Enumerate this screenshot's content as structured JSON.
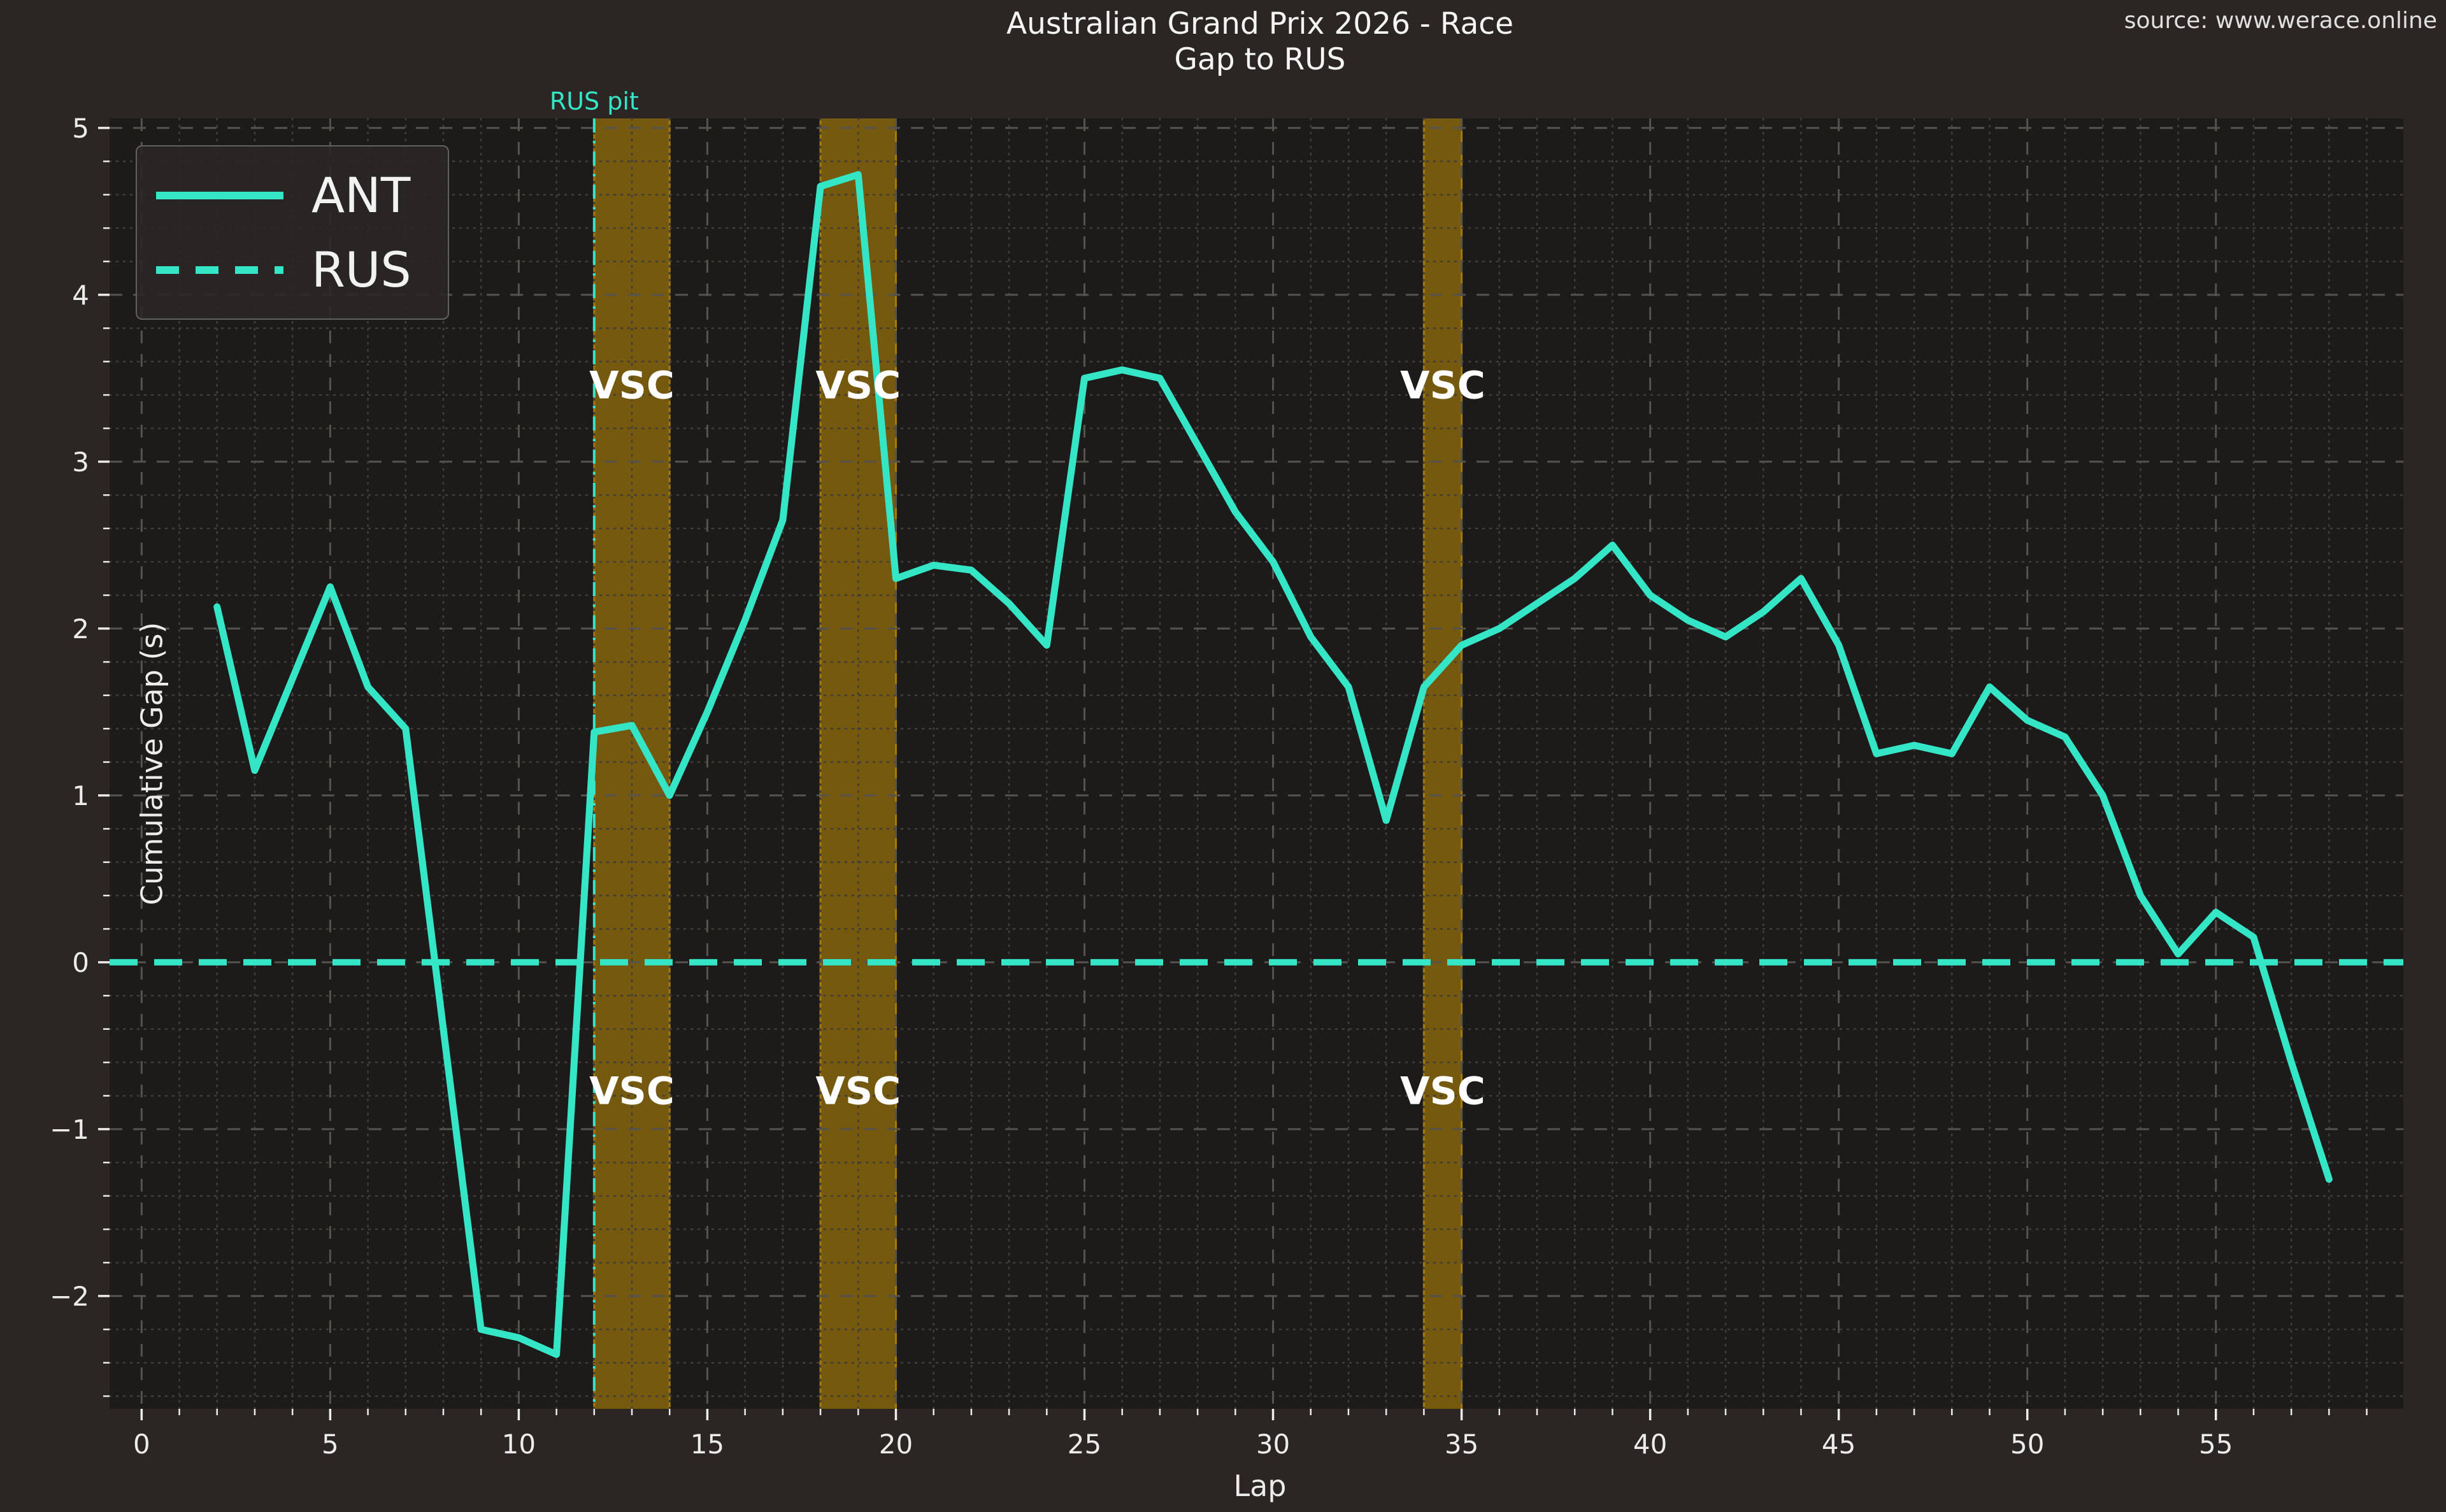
{
  "title": {
    "line1": "Australian Grand Prix 2026 - Race",
    "line2": "Gap to RUS"
  },
  "source": "source: www.werace.online",
  "axes": {
    "xlabel": "Lap",
    "ylabel": "Cumulative Gap (s)"
  },
  "legend": [
    {
      "label": "ANT",
      "style": "solid"
    },
    {
      "label": "RUS",
      "style": "dashed"
    }
  ],
  "annotations": {
    "rus_pit_label": "RUS pit",
    "rus_pit_lap": 12,
    "vsc_label": "VSC",
    "vsc_label_upper_y": 3.46,
    "vsc_label_lower_y": -0.77
  },
  "colors": {
    "figure_bg": "#2b2523",
    "axes_bg": "#1c1b1a",
    "line_teal": "#34e5c6",
    "grid_major": "#56524e",
    "grid_minor": "#403d3a",
    "tick_text": "#ececec",
    "vsc_fill": "#75590f",
    "vsc_edge": "#a57b0d",
    "vsc_text": "#ffffff"
  },
  "chart_data": {
    "type": "line",
    "title": "Australian Grand Prix 2026 - Race",
    "subtitle": "Gap to RUS",
    "xlabel": "Lap",
    "ylabel": "Cumulative Gap (s)",
    "xlim": [
      -0.85,
      59.97
    ],
    "ylim": [
      -2.676,
      5.057
    ],
    "grid": true,
    "legend_position": "upper left",
    "x": [
      2,
      3,
      4,
      5,
      6,
      7,
      8,
      9,
      10,
      11,
      12,
      13,
      14,
      15,
      16,
      17,
      18,
      19,
      20,
      21,
      22,
      23,
      24,
      25,
      26,
      27,
      28,
      29,
      30,
      31,
      32,
      33,
      34,
      35,
      36,
      37,
      38,
      39,
      40,
      41,
      42,
      43,
      44,
      45,
      46,
      47,
      48,
      49,
      50,
      51,
      52,
      53,
      54,
      55,
      56,
      57,
      58
    ],
    "series": [
      {
        "name": "ANT",
        "style": "solid",
        "values": [
          2.13,
          1.15,
          1.7,
          2.25,
          1.65,
          1.4,
          -0.4,
          -2.2,
          -2.25,
          -2.35,
          1.38,
          1.42,
          1.0,
          1.5,
          2.05,
          2.65,
          4.65,
          4.72,
          2.3,
          2.38,
          2.35,
          2.15,
          1.9,
          3.5,
          3.55,
          3.5,
          3.1,
          2.7,
          2.4,
          1.95,
          1.65,
          0.85,
          1.65,
          1.9,
          2.0,
          2.15,
          2.3,
          2.5,
          2.2,
          2.05,
          1.95,
          2.1,
          2.3,
          1.9,
          1.25,
          1.3,
          1.25,
          1.65,
          1.45,
          1.35,
          1.0,
          0.4,
          0.05,
          0.3,
          0.15,
          -0.6,
          -1.3
        ]
      },
      {
        "name": "RUS",
        "style": "dashed",
        "constant": 0
      }
    ],
    "vsc_bands": [
      [
        12,
        14
      ],
      [
        18,
        20
      ],
      [
        34,
        35
      ]
    ],
    "rus_pit_lap": 12,
    "xticks": [
      {
        "v": 0,
        "label": "0"
      },
      {
        "v": 5,
        "label": "5"
      },
      {
        "v": 10,
        "label": "10"
      },
      {
        "v": 15,
        "label": "15"
      },
      {
        "v": 20,
        "label": "20"
      },
      {
        "v": 25,
        "label": "25"
      },
      {
        "v": 30,
        "label": "30"
      },
      {
        "v": 35,
        "label": "35"
      },
      {
        "v": 40,
        "label": "40"
      },
      {
        "v": 45,
        "label": "45"
      },
      {
        "v": 50,
        "label": "50"
      },
      {
        "v": 55,
        "label": "55"
      }
    ],
    "yticks": [
      {
        "v": 5,
        "label": "5"
      },
      {
        "v": 4,
        "label": "4"
      },
      {
        "v": 3,
        "label": "3"
      },
      {
        "v": 2,
        "label": "2"
      },
      {
        "v": 1,
        "label": "1"
      },
      {
        "v": 0,
        "label": "0"
      },
      {
        "v": -1,
        "label": "−1"
      },
      {
        "v": -2,
        "label": "−2"
      }
    ],
    "minor_x_step": 1,
    "minor_y_step": 0.2
  }
}
